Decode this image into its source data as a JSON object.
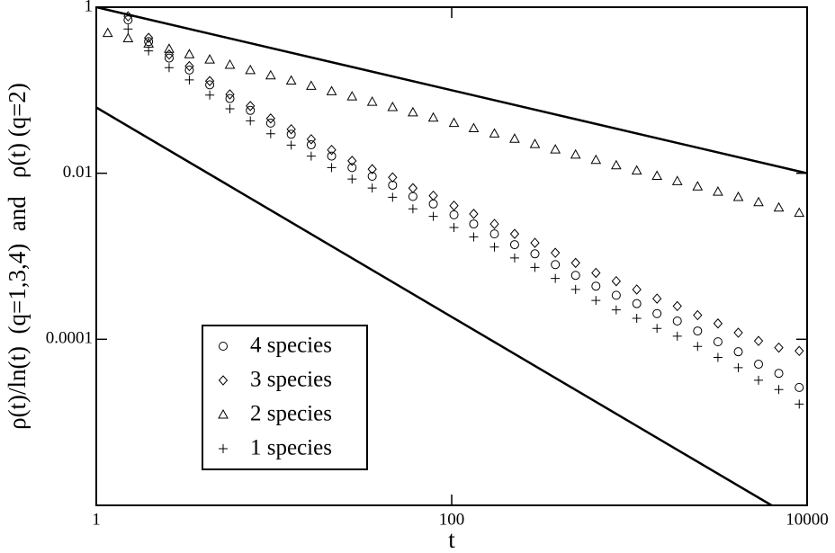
{
  "chart_data": {
    "type": "scatter",
    "x_label": "t",
    "y_label": "ρ(t)/ln(t)  (q=1,3,4)  and   ρ(t) (q=2)",
    "log_x": true,
    "log_y": true,
    "xlim": [
      1,
      10000
    ],
    "ylim": [
      1e-06,
      1
    ],
    "xticks": [
      1,
      100,
      10000
    ],
    "yticks": [
      1,
      0.01,
      0.0001
    ],
    "legend": "bottom-left",
    "x": [
      1.16,
      1.51,
      1.97,
      2.57,
      3.34,
      4.35,
      5.65,
      7.36,
      9.58,
      12.5,
      16.2,
      21.1,
      27.5,
      35.7,
      46.5,
      60.5,
      78.8,
      103,
      133,
      174,
      226,
      294,
      383,
      498,
      648,
      843,
      1100,
      1430,
      1860,
      2420,
      3150,
      4100,
      5330,
      6930,
      9030
    ],
    "series": [
      {
        "name": "4 species",
        "marker": "circle",
        "color": "#000000",
        "values": [
          null,
          0.703,
          0.385,
          0.244,
          0.175,
          0.116,
          0.0794,
          0.0571,
          0.0402,
          0.0295,
          0.022,
          0.0161,
          0.0117,
          0.0092,
          0.00718,
          0.00525,
          0.00427,
          0.00316,
          0.00245,
          0.00186,
          0.00138,
          0.00107,
          0.000794,
          0.000589,
          0.000437,
          0.000339,
          0.000269,
          0.000204,
          0.000166,
          0.000126,
          9.33e-05,
          7.08e-05,
          5.01e-05,
          3.89e-05,
          2.63e-05
        ]
      },
      {
        "name": "3 species",
        "marker": "diamond",
        "color": "#000000",
        "values": [
          null,
          0.776,
          0.427,
          0.269,
          0.195,
          0.129,
          0.0891,
          0.0646,
          0.0457,
          0.0339,
          0.0257,
          0.0191,
          0.0141,
          0.0112,
          0.00891,
          0.00661,
          0.00537,
          0.00407,
          0.00324,
          0.00245,
          0.00186,
          0.00145,
          0.0011,
          0.000832,
          0.000631,
          0.000501,
          0.000398,
          0.000309,
          0.000251,
          0.000195,
          0.000155,
          0.00012,
          9.55e-05,
          7.94e-05,
          7.24e-05
        ]
      },
      {
        "name": "2 species",
        "marker": "triangle",
        "color": "#000000",
        "values": [
          0.49,
          0.423,
          0.365,
          0.316,
          0.272,
          0.235,
          0.203,
          0.175,
          0.151,
          0.131,
          0.113,
          0.0975,
          0.0843,
          0.0728,
          0.0628,
          0.0543,
          0.0469,
          0.0405,
          0.0349,
          0.0302,
          0.0261,
          0.0225,
          0.0194,
          0.0168,
          0.0145,
          0.0125,
          0.0108,
          0.00933,
          0.00806,
          0.00696,
          0.00601,
          0.00519,
          0.00449,
          0.00387,
          0.00334
        ]
      },
      {
        "name": "1 species",
        "marker": "plus",
        "color": "#000000",
        "values": [
          null,
          0.546,
          0.297,
          0.187,
          0.133,
          0.0875,
          0.0597,
          0.0428,
          0.0299,
          0.0218,
          0.0161,
          0.0117,
          0.00851,
          0.00664,
          0.00514,
          0.00373,
          0.00302,
          0.00222,
          0.00171,
          0.00129,
          0.000953,
          0.000735,
          0.000541,
          0.000399,
          0.000294,
          0.000226,
          0.000179,
          0.000135,
          0.000109,
          8.2e-05,
          6.05e-05,
          4.56e-05,
          3.21e-05,
          2.48e-05,
          1.66e-05
        ]
      }
    ],
    "reference_lines": [
      {
        "color": "#000000",
        "x": [
          1,
          10000
        ],
        "values": [
          1,
          0.01
        ]
      },
      {
        "color": "#000000",
        "x": [
          1,
          6310
        ],
        "values": [
          0.062,
          1e-06
        ]
      }
    ]
  }
}
